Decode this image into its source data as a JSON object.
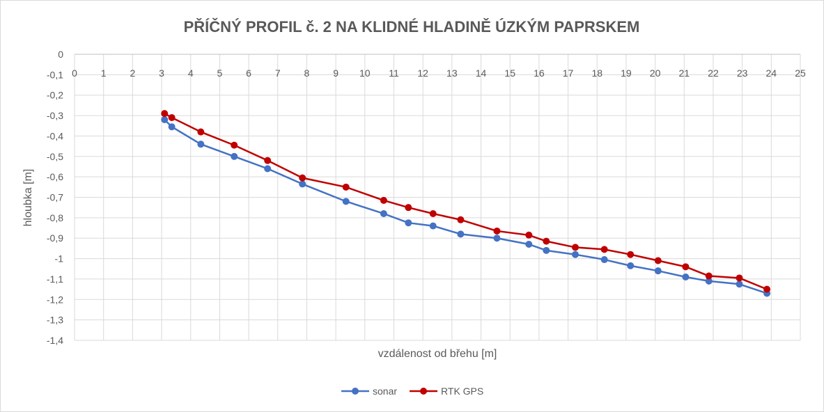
{
  "chart_data": {
    "type": "line",
    "title": "PŘÍČNÝ PROFIL č. 2 NA KLIDNÉ HLADINĚ ÚZKÝM PAPRSKEM",
    "xlabel": "vzdálenost od břehu [m]",
    "ylabel": "hloubka [m]",
    "xlim": [
      0,
      25
    ],
    "ylim": [
      -1.4,
      0
    ],
    "x_ticks": [
      "0",
      "1",
      "2",
      "3",
      "4",
      "5",
      "6",
      "7",
      "8",
      "9",
      "10",
      "11",
      "12",
      "13",
      "14",
      "15",
      "16",
      "17",
      "18",
      "19",
      "20",
      "21",
      "22",
      "23",
      "24",
      "25"
    ],
    "y_ticks": [
      "0",
      "-0,1",
      "-0,2",
      "-0,3",
      "-0,4",
      "-0,5",
      "-0,6",
      "-0,7",
      "-0,8",
      "-0,9",
      "-1",
      "-1,1",
      "-1,2",
      "-1,3",
      "-1,4"
    ],
    "grid": true,
    "legend_position": "bottom",
    "series": [
      {
        "name": "sonar",
        "color": "#4472c4",
        "x": [
          3.1,
          3.35,
          4.35,
          5.5,
          6.65,
          7.85,
          9.35,
          10.65,
          11.5,
          12.35,
          13.3,
          14.55,
          15.65,
          16.25,
          17.25,
          18.25,
          19.15,
          20.1,
          21.05,
          21.85,
          22.9,
          23.85
        ],
        "y": [
          -0.32,
          -0.355,
          -0.44,
          -0.5,
          -0.56,
          -0.635,
          -0.72,
          -0.78,
          -0.825,
          -0.84,
          -0.88,
          -0.9,
          -0.93,
          -0.96,
          -0.98,
          -1.005,
          -1.035,
          -1.06,
          -1.09,
          -1.11,
          -1.125,
          -1.17
        ]
      },
      {
        "name": "RTK GPS",
        "color": "#c00000",
        "x": [
          3.1,
          3.35,
          4.35,
          5.5,
          6.65,
          7.85,
          9.35,
          10.65,
          11.5,
          12.35,
          13.3,
          14.55,
          15.65,
          16.25,
          17.25,
          18.25,
          19.15,
          20.1,
          21.05,
          21.85,
          22.9,
          23.85
        ],
        "y": [
          -0.29,
          -0.31,
          -0.38,
          -0.445,
          -0.52,
          -0.605,
          -0.65,
          -0.715,
          -0.75,
          -0.78,
          -0.81,
          -0.865,
          -0.885,
          -0.915,
          -0.945,
          -0.955,
          -0.98,
          -1.01,
          -1.04,
          -1.085,
          -1.095,
          -1.15
        ]
      }
    ]
  }
}
